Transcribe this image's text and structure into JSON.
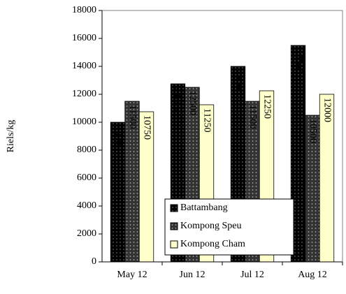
{
  "chart_data": {
    "type": "bar",
    "y_label": "Riels/kg",
    "categories": [
      "May 12",
      "Jun 12",
      "Jul 12",
      "Aug 12"
    ],
    "series": [
      {
        "name": "Battambang",
        "color": "#000000",
        "values": [
          10000,
          12750,
          14000,
          15500
        ]
      },
      {
        "name": "Kompong Speu",
        "color": "#333333",
        "values": [
          11500,
          12500,
          11500,
          10500
        ]
      },
      {
        "name": "Kompong Cham",
        "color": "#ffffcc",
        "values": [
          10750,
          11250,
          12250,
          12000
        ]
      }
    ],
    "ylim": [
      0,
      18000
    ],
    "yticks": [
      0,
      2000,
      4000,
      6000,
      8000,
      10000,
      12000,
      14000,
      16000,
      18000
    ],
    "grid": false,
    "legend_position": "bottom center",
    "data_labels": true
  }
}
